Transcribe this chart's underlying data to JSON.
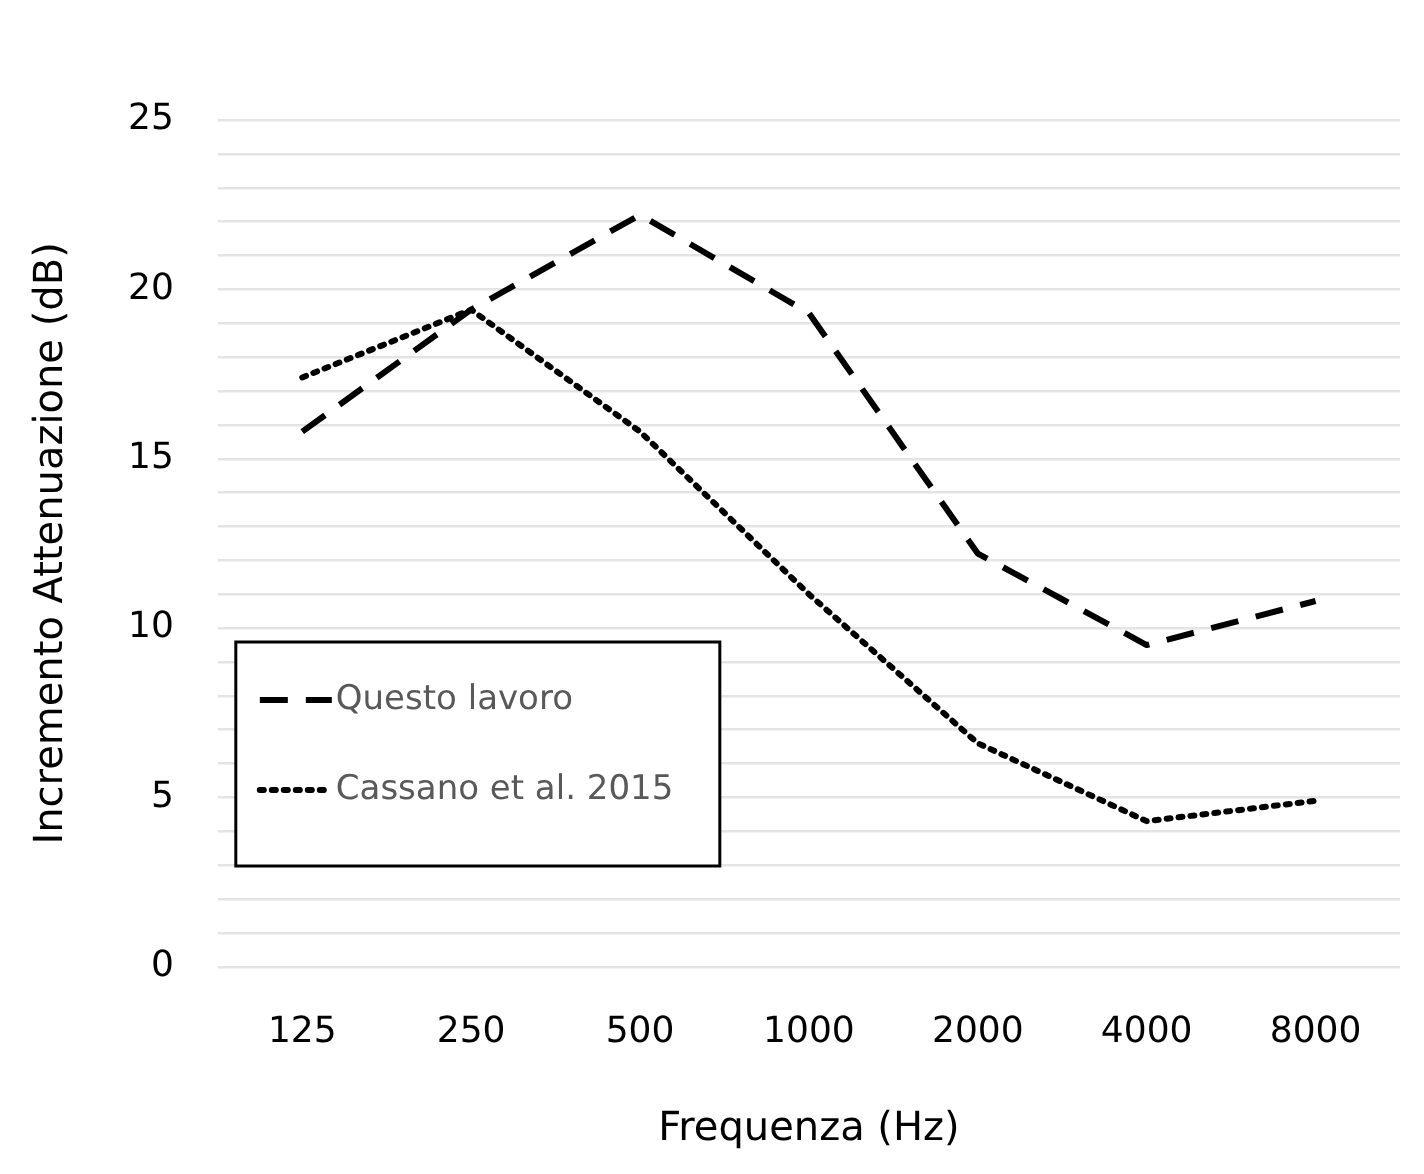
{
  "chart_data": {
    "type": "line",
    "xlabel": "Frequenza (Hz)",
    "ylabel": "Incremento Attenuazione (dB)",
    "categories": [
      "125",
      "250",
      "500",
      "1000",
      "2000",
      "4000",
      "8000"
    ],
    "series": [
      {
        "name": "Questo lavoro",
        "color": "#000000",
        "line_style": "dashed",
        "values": [
          15.8,
          19.4,
          22.2,
          19.3,
          12.2,
          9.5,
          10.8
        ]
      },
      {
        "name": "Cassano et al. 2015",
        "color": "#000000",
        "line_style": "dotted",
        "values": [
          17.4,
          19.4,
          15.8,
          11,
          6.6,
          4.3,
          4.9
        ]
      }
    ],
    "ylim": [
      0,
      25
    ],
    "yticks": [
      0,
      {
        "value": 1,
        "label": null
      },
      {
        "value": 2,
        "label": null
      },
      {
        "value": 3,
        "label": null
      },
      {
        "value": 4,
        "label": null
      },
      5,
      {
        "value": 6,
        "label": null
      },
      {
        "value": 7,
        "label": null
      },
      {
        "value": 8,
        "label": null
      },
      {
        "value": 9,
        "label": null
      },
      10,
      {
        "value": 11,
        "label": null
      },
      {
        "value": 12,
        "label": null
      },
      {
        "value": 13,
        "label": null
      },
      {
        "value": 14,
        "label": null
      },
      15,
      {
        "value": 16,
        "label": null
      },
      {
        "value": 17,
        "label": null
      },
      {
        "value": 18,
        "label": null
      },
      {
        "value": 19,
        "label": null
      },
      20,
      {
        "value": 21,
        "label": null
      },
      {
        "value": 22,
        "label": null
      },
      {
        "value": 23,
        "label": null
      },
      {
        "value": 24,
        "label": null
      },
      25
    ],
    "grid": "y",
    "legend": "left",
    "marker": "none"
  }
}
